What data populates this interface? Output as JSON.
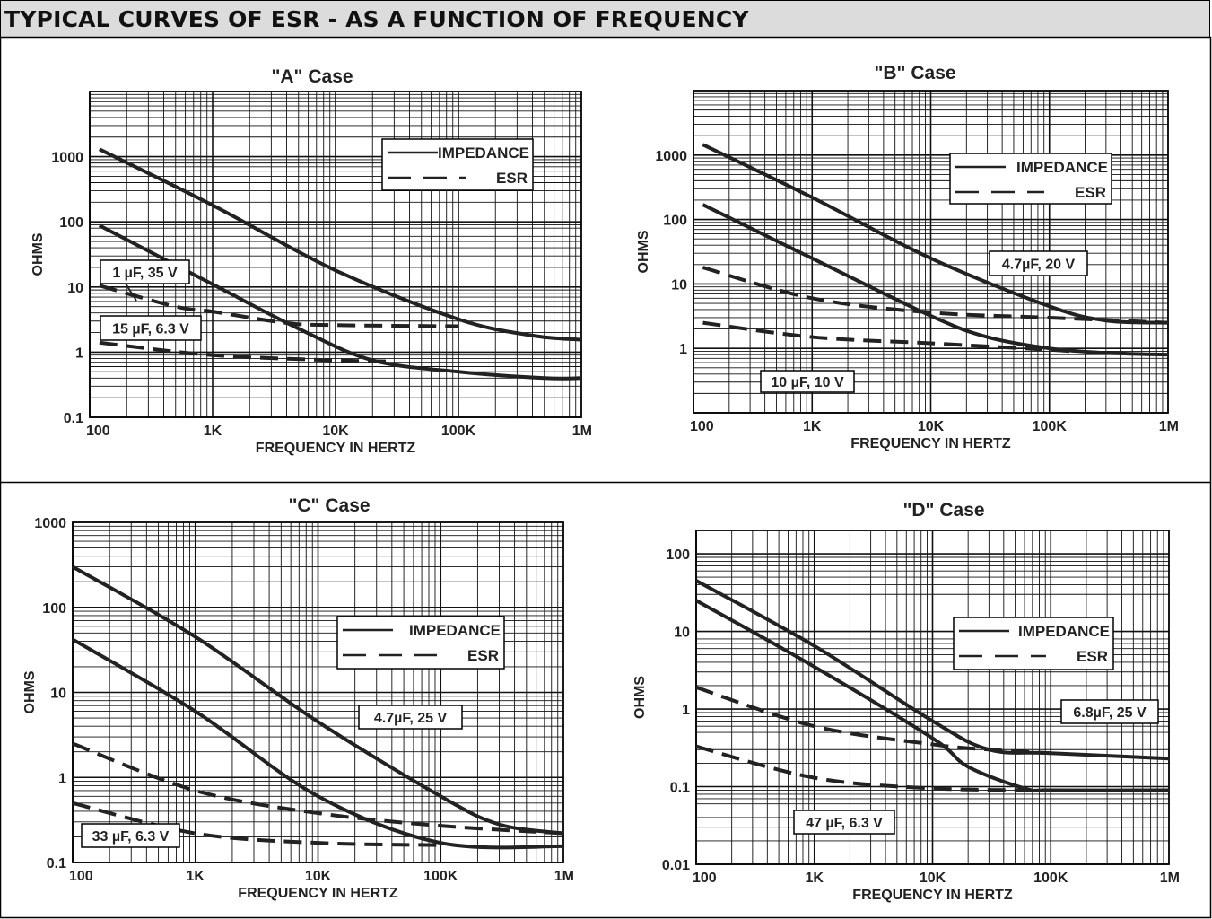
{
  "header": {
    "title": "TYPICAL CURVES OF ESR - AS A FUNCTION OF FREQUENCY"
  },
  "chart_data": [
    {
      "type": "line",
      "title": "\"A\" Case",
      "xlabel": "FREQUENCY IN HERTZ",
      "ylabel": "OHMS",
      "xscale": "log",
      "yscale": "log",
      "xlim": [
        100,
        1000000
      ],
      "ylim": [
        0.1,
        10000
      ],
      "xticks": [
        "100",
        "1K",
        "10K",
        "100K",
        "1M"
      ],
      "yticks": [
        "0.1",
        "1",
        "10",
        "100",
        "1000"
      ],
      "legend": {
        "position": "top-right",
        "entries": [
          "IMPEDANCE",
          "ESR"
        ]
      },
      "annotations": [
        "1 µF, 35 V",
        "15 µF, 6.3 V"
      ],
      "series": [
        {
          "capacitor": "1 µF, 35 V",
          "kind": "impedance",
          "x": [
            120,
            1000,
            10000,
            100000,
            400000,
            1000000
          ],
          "y": [
            1300,
            180,
            18,
            3.2,
            1.8,
            1.55
          ]
        },
        {
          "capacitor": "1 µF, 35 V",
          "kind": "esr",
          "x": [
            120,
            500,
            1000,
            4000,
            10000,
            100000
          ],
          "y": [
            10.5,
            5,
            4.2,
            2.8,
            2.6,
            2.5
          ]
        },
        {
          "capacitor": "15 µF, 6.3 V",
          "kind": "impedance",
          "x": [
            120,
            1000,
            5000,
            20000,
            100000,
            500000,
            1000000
          ],
          "y": [
            88,
            11,
            2.3,
            0.75,
            0.5,
            0.4,
            0.4
          ]
        },
        {
          "capacitor": "15 µF, 6.3 V",
          "kind": "esr",
          "x": [
            120,
            1000,
            10000,
            30000
          ],
          "y": [
            1.4,
            0.9,
            0.75,
            0.72
          ]
        }
      ]
    },
    {
      "type": "line",
      "title": "\"B\" Case",
      "xlabel": "FREQUENCY IN HERTZ",
      "ylabel": "OHMS",
      "xscale": "log",
      "yscale": "log",
      "xlim": [
        100,
        1000000
      ],
      "ylim": [
        0.1,
        10000
      ],
      "xticks": [
        "100",
        "1K",
        "10K",
        "100K",
        "1M"
      ],
      "yticks": [
        "1",
        "10",
        "100",
        "1000"
      ],
      "legend": {
        "position": "top-right",
        "entries": [
          "IMPEDANCE",
          "ESR"
        ]
      },
      "annotations": [
        "4.7µF, 20 V",
        "10 µF, 10 V"
      ],
      "series": [
        {
          "capacitor": "4.7µF, 20 V",
          "kind": "impedance",
          "x": [
            120,
            1000,
            10000,
            100000,
            300000,
            1000000
          ],
          "y": [
            1450,
            220,
            25,
            4.5,
            2.7,
            2.5
          ]
        },
        {
          "capacitor": "4.7µF, 20 V",
          "kind": "esr",
          "x": [
            120,
            1000,
            10000,
            100000,
            1000000
          ],
          "y": [
            18,
            6,
            3.6,
            3,
            2.5
          ]
        },
        {
          "capacitor": "10 µF, 10 V",
          "kind": "impedance",
          "x": [
            120,
            1000,
            10000,
            30000,
            100000,
            300000,
            1000000
          ],
          "y": [
            170,
            25,
            3.2,
            1.5,
            1,
            0.85,
            0.8
          ]
        },
        {
          "capacitor": "10 µF, 10 V",
          "kind": "esr",
          "x": [
            120,
            1000,
            10000,
            100000,
            150000
          ],
          "y": [
            2.5,
            1.5,
            1.2,
            0.95,
            0.9
          ]
        }
      ]
    },
    {
      "type": "line",
      "title": "\"C\" Case",
      "xlabel": "FREQUENCY IN HERTZ",
      "ylabel": "OHMS",
      "xscale": "log",
      "yscale": "log",
      "xlim": [
        100,
        1000000
      ],
      "ylim": [
        0.1,
        1000
      ],
      "xticks": [
        "100",
        "1K",
        "10K",
        "100K",
        "1M"
      ],
      "yticks": [
        "0.1",
        "1",
        "10",
        "100",
        "1000"
      ],
      "legend": {
        "position": "top-right",
        "entries": [
          "IMPEDANCE",
          "ESR"
        ]
      },
      "annotations": [
        "4.7µF, 25 V",
        "33 µF, 6.3 V"
      ],
      "series": [
        {
          "capacitor": "4.7µF, 25 V",
          "kind": "impedance",
          "x": [
            100,
            1000,
            10000,
            100000,
            300000,
            1000000
          ],
          "y": [
            300,
            45,
            4.5,
            0.6,
            0.28,
            0.22
          ]
        },
        {
          "capacitor": "4.7µF, 25 V",
          "kind": "esr",
          "x": [
            100,
            1000,
            10000,
            100000,
            1000000
          ],
          "y": [
            2.5,
            0.7,
            0.38,
            0.27,
            0.22
          ]
        },
        {
          "capacitor": "33 µF, 6.3 V",
          "kind": "impedance",
          "x": [
            100,
            1000,
            10000,
            100000,
            1000000
          ],
          "y": [
            42,
            6,
            0.6,
            0.17,
            0.155
          ]
        },
        {
          "capacitor": "33 µF, 6.3 V",
          "kind": "esr",
          "x": [
            100,
            1000,
            10000,
            100000
          ],
          "y": [
            0.5,
            0.22,
            0.17,
            0.16
          ]
        }
      ]
    },
    {
      "type": "line",
      "title": "\"D\" Case",
      "xlabel": "FREQUENCY IN HERTZ",
      "ylabel": "OHMS",
      "xscale": "log",
      "yscale": "log",
      "xlim": [
        100,
        1000000
      ],
      "ylim": [
        0.01,
        200
      ],
      "xticks": [
        "100",
        "1K",
        "10K",
        "100K",
        "1M"
      ],
      "yticks": [
        "0.01",
        "0.1",
        "1",
        "10",
        "100"
      ],
      "legend": {
        "position": "top-right",
        "entries": [
          "IMPEDANCE",
          "ESR"
        ]
      },
      "annotations": [
        "6.8µF, 25 V",
        "47 µF, 6.3 V"
      ],
      "series": [
        {
          "capacitor": "6.8µF, 25 V",
          "kind": "impedance",
          "x": [
            100,
            1000,
            10000,
            30000,
            100000,
            1000000
          ],
          "y": [
            45,
            6.5,
            0.7,
            0.3,
            0.27,
            0.23
          ]
        },
        {
          "capacitor": "6.8µF, 25 V",
          "kind": "esr",
          "x": [
            100,
            1000,
            10000,
            30000,
            100000
          ],
          "y": [
            1.9,
            0.6,
            0.35,
            0.3,
            0.27
          ]
        },
        {
          "capacitor": "47 µF, 6.3 V",
          "kind": "impedance",
          "x": [
            100,
            1000,
            10000,
            20000,
            60000,
            100000,
            1000000
          ],
          "y": [
            25,
            3.5,
            0.42,
            0.18,
            0.095,
            0.09,
            0.09
          ]
        },
        {
          "capacitor": "47 µF, 6.3 V",
          "kind": "esr",
          "x": [
            100,
            1000,
            10000,
            100000
          ],
          "y": [
            0.33,
            0.13,
            0.095,
            0.09
          ]
        }
      ]
    }
  ]
}
